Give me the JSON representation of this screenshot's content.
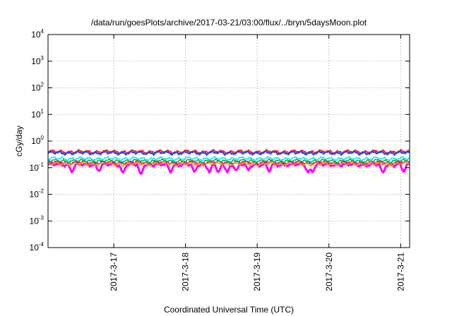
{
  "chart_data": {
    "type": "line",
    "title": "/data/run/goesPlots/archive/2017-03-21/03:00/flux/../bryn/5daysMoon.plot",
    "xlabel": "Coordinated Universal Time (UTC)",
    "ylabel": "cGy/day",
    "yscale": "log",
    "ylim": [
      0.0001,
      10000
    ],
    "y_ticks": [
      {
        "base": "10",
        "exp": "-4",
        "value": 0.0001
      },
      {
        "base": "10",
        "exp": "-3",
        "value": 0.001
      },
      {
        "base": "10",
        "exp": "-2",
        "value": 0.01
      },
      {
        "base": "10",
        "exp": "-1",
        "value": 0.1
      },
      {
        "base": "10",
        "exp": "0",
        "value": 1
      },
      {
        "base": "10",
        "exp": "1",
        "value": 10
      },
      {
        "base": "10",
        "exp": "2",
        "value": 100
      },
      {
        "base": "10",
        "exp": "3",
        "value": 1000
      },
      {
        "base": "10",
        "exp": "4",
        "value": 10000
      }
    ],
    "xlim": [
      "2017-03-16 02:00",
      "2017-03-21 03:00"
    ],
    "x_ticks": [
      {
        "label": "2017-3-17",
        "value": "2017-03-17 00:00"
      },
      {
        "label": "2017-3-18",
        "value": "2017-03-18 00:00"
      },
      {
        "label": "2017-3-19",
        "value": "2017-03-19 00:00"
      },
      {
        "label": "2017-3-20",
        "value": "2017-03-20 00:00"
      },
      {
        "label": "2017-3-21",
        "value": "2017-03-21 00:00"
      }
    ],
    "grid": true,
    "legend": "none",
    "series": [
      {
        "color": "#ff00ff",
        "baseline": 0.13,
        "dips": [
          {
            "at": "2017-03-16 10:00",
            "min": 0.065
          },
          {
            "at": "2017-03-16 19:00",
            "min": 0.07
          },
          {
            "at": "2017-03-17 03:00",
            "min": 0.06
          },
          {
            "at": "2017-03-17 09:00",
            "min": 0.05
          },
          {
            "at": "2017-03-17 19:00",
            "min": 0.065
          },
          {
            "at": "2017-03-18 03:00",
            "min": 0.065
          },
          {
            "at": "2017-03-18 08:00",
            "min": 0.065
          },
          {
            "at": "2017-03-18 11:00",
            "min": 0.06
          },
          {
            "at": "2017-03-18 14:00",
            "min": 0.065
          },
          {
            "at": "2017-03-18 17:00",
            "min": 0.075
          },
          {
            "at": "2017-03-18 21:00",
            "min": 0.08
          },
          {
            "at": "2017-03-19 04:00",
            "min": 0.07
          },
          {
            "at": "2017-03-19 17:00",
            "min": 0.065
          },
          {
            "at": "2017-03-19 18:30",
            "min": 0.065
          },
          {
            "at": "2017-03-20 18:00",
            "min": 0.06
          },
          {
            "at": "2017-03-21 01:00",
            "min": 0.065
          }
        ]
      },
      {
        "color": "#e8004c",
        "baseline": 0.16,
        "dips": []
      },
      {
        "color": "#ff8c00",
        "baseline": 0.14,
        "dips": []
      },
      {
        "color": "#00b050",
        "baseline": 0.18,
        "dips": []
      },
      {
        "color": "#00e8e8",
        "baseline": 0.22,
        "dips": []
      },
      {
        "color": "#ff2a2a",
        "baseline": 0.4,
        "dips": []
      },
      {
        "color": "#2244ff",
        "baseline": 0.36,
        "dips": []
      }
    ]
  }
}
